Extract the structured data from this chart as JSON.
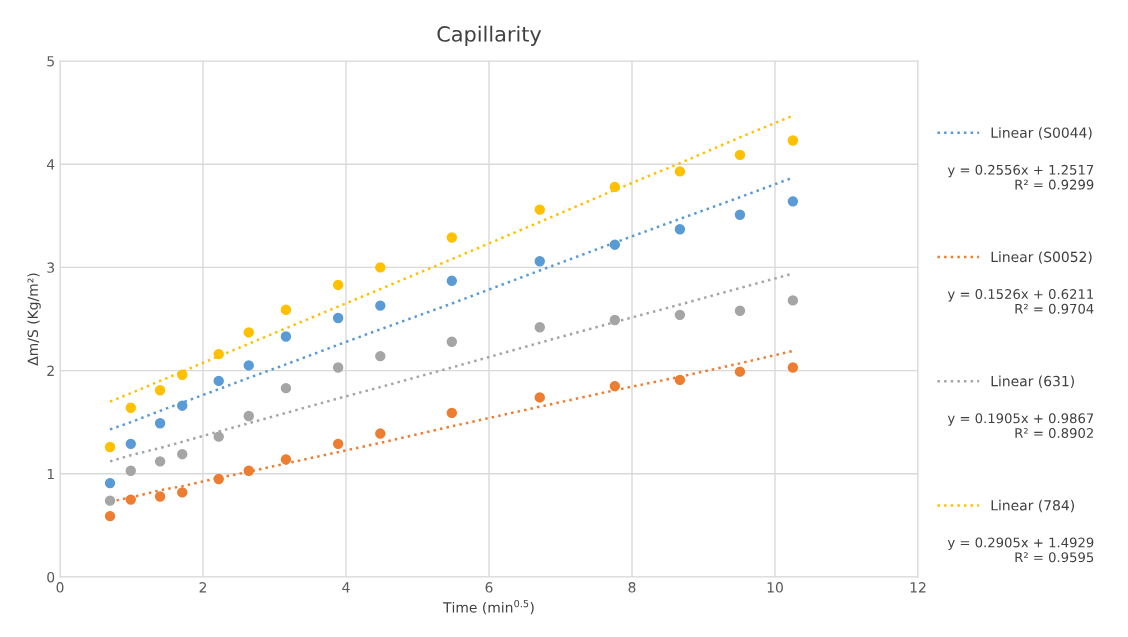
{
  "chart_data": {
    "type": "scatter",
    "title": "Capillarity",
    "xlabel": "Time (min$^{0.5}$)",
    "ylabel": "Δm/S (Kg/m²)",
    "x": [
      0.7,
      0.99,
      1.4,
      1.71,
      2.22,
      2.64,
      3.16,
      3.89,
      4.48,
      5.48,
      6.71,
      7.76,
      8.67,
      9.51,
      10.25
    ],
    "series": [
      {
        "color": "#ffc000",
        "marker": "circle",
        "values": [
          1.26,
          1.64,
          1.81,
          1.96,
          2.16,
          2.37,
          2.59,
          2.83,
          3.0,
          3.29,
          3.56,
          3.78,
          3.93,
          4.09,
          4.23
        ]
      },
      {
        "color": "#5b9bd5",
        "marker": "circle",
        "values": [
          0.91,
          1.29,
          1.49,
          1.66,
          1.9,
          2.05,
          2.33,
          2.51,
          2.63,
          2.87,
          3.06,
          3.22,
          3.37,
          3.51,
          3.64
        ]
      },
      {
        "color": "#a5a5a5",
        "marker": "circle",
        "values": [
          0.74,
          1.03,
          1.12,
          1.19,
          1.36,
          1.56,
          1.83,
          2.03,
          2.14,
          2.28,
          2.42,
          2.49,
          2.54,
          2.58,
          2.68
        ]
      },
      {
        "color": "#ed7d31",
        "marker": "circle",
        "values": [
          0.59,
          0.75,
          0.78,
          0.82,
          0.95,
          1.03,
          1.14,
          1.29,
          1.39,
          1.59,
          1.74,
          1.85,
          1.91,
          1.99,
          2.03
        ]
      },
      {
        "type": "line",
        "name": "Linear (S0044)",
        "color": "#5b9bd5",
        "line_style": "dotted",
        "marker": "none",
        "values": [
          1.43,
          1.5,
          1.61,
          1.69,
          1.82,
          1.93,
          2.06,
          2.25,
          2.4,
          2.65,
          2.97,
          3.24,
          3.47,
          3.68,
          3.87
        ]
      },
      {
        "type": "line",
        "name": "Linear (S0052)",
        "color": "#ed7d31",
        "line_style": "dotted",
        "marker": "none",
        "values": [
          0.73,
          0.77,
          0.84,
          0.88,
          0.96,
          1.02,
          1.1,
          1.21,
          1.3,
          1.46,
          1.65,
          1.81,
          1.94,
          2.07,
          2.19
        ]
      },
      {
        "type": "line",
        "name": "Linear (631)",
        "color": "#a5a5a5",
        "line_style": "dotted",
        "marker": "none",
        "values": [
          1.12,
          1.18,
          1.25,
          1.31,
          1.41,
          1.49,
          1.59,
          1.73,
          1.84,
          2.03,
          2.27,
          2.47,
          2.64,
          2.8,
          2.94
        ]
      },
      {
        "type": "line",
        "name": "Linear (784)",
        "color": "#ffc000",
        "line_style": "dotted",
        "marker": "none",
        "values": [
          1.7,
          1.78,
          1.9,
          1.99,
          2.14,
          2.26,
          2.41,
          2.62,
          2.79,
          3.08,
          3.44,
          3.75,
          4.01,
          4.26,
          4.47
        ]
      }
    ],
    "annotations": [
      "y = 0.2556x + 1.2517\nR² = 0.9299",
      "y = 0.1526x + 0.6211\nR² = 0.9704",
      "y = 0.1905x + 0.9867\nR² = 0.8902",
      "y = 0.2905x + 1.4929\nR² = 0.9595"
    ],
    "xlim": [
      0,
      12
    ],
    "ylim": [
      0,
      5
    ],
    "xticks": [
      0,
      2,
      4,
      6,
      8,
      10,
      12
    ],
    "yticks": [
      0,
      1,
      2,
      3,
      4,
      5
    ],
    "grid": true,
    "legend": "right"
  }
}
